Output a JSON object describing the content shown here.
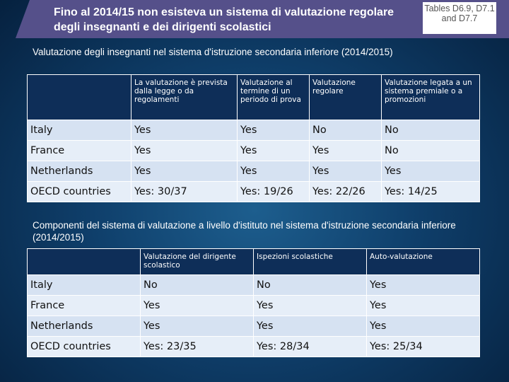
{
  "header": {
    "title": "Fino al 2014/15 non esisteva un sistema di valutazione regolare degli insegnanti e dei dirigenti scolastici",
    "tables_ref": "Tables D6.9, D7.1 and D7.7"
  },
  "section1": {
    "title": "Valutazione degli insegnanti nel sistema d'istruzione secondaria inferiore (2014/2015)",
    "columns": [
      "La valutazione è prevista dalla legge o da regolamenti",
      "Valutazione al termine di un periodo di prova",
      "Valutazione regolare",
      "Valutazione legata a un sistema premiale o a promozioni"
    ],
    "rows": [
      {
        "country": "Italy",
        "cells": [
          "Yes",
          "Yes",
          "No",
          "No"
        ]
      },
      {
        "country": "France",
        "cells": [
          "Yes",
          "Yes",
          "Yes",
          "No"
        ]
      },
      {
        "country": "Netherlands",
        "cells": [
          "Yes",
          "Yes",
          "Yes",
          "Yes"
        ]
      },
      {
        "country": "OECD countries",
        "cells": [
          "Yes: 30/37",
          "Yes: 19/26",
          "Yes: 22/26",
          "Yes: 14/25"
        ]
      }
    ]
  },
  "section2": {
    "title": "Componenti del sistema di valutazione a livello d'istituto nel sistema d'istruzione secondaria inferiore (2014/2015)",
    "columns": [
      "Valutazione del dirigente scolastico",
      "Ispezioni scolastiche",
      "Auto-valutazione"
    ],
    "rows": [
      {
        "country": "Italy",
        "cells": [
          "No",
          "No",
          "Yes"
        ]
      },
      {
        "country": "France",
        "cells": [
          "Yes",
          "Yes",
          "Yes"
        ]
      },
      {
        "country": "Netherlands",
        "cells": [
          "Yes",
          "Yes",
          "Yes"
        ]
      },
      {
        "country": "OECD countries",
        "cells": [
          "Yes: 23/35",
          "Yes: 28/34",
          "Yes: 25/34"
        ]
      }
    ]
  },
  "colors": {
    "banner": "#55508a",
    "table_header": "#0e2e58",
    "row_light": "#e6eef8",
    "row_alt": "#d6e2f2"
  }
}
